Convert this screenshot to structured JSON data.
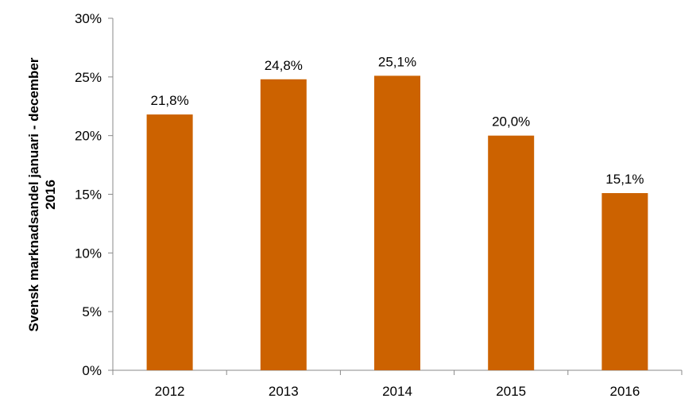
{
  "chart_data": {
    "type": "bar",
    "title": "",
    "categories": [
      "2012",
      "2013",
      "2014",
      "2015",
      "2016"
    ],
    "values": [
      21.8,
      24.8,
      25.1,
      20.0,
      15.1
    ],
    "data_labels": [
      "21,8%",
      "24,8%",
      "25,1%",
      "20,0%",
      "15,1%"
    ],
    "ylabel_lines": [
      "Svensk marknadsandel januari - december",
      "2016"
    ],
    "xlabel": "",
    "ylim": [
      0,
      30
    ],
    "yticks": [
      0,
      5,
      10,
      15,
      20,
      25,
      30
    ],
    "ytick_labels": [
      "0%",
      "5%",
      "10%",
      "15%",
      "20%",
      "25%",
      "30%"
    ],
    "grid": false,
    "legend": "none",
    "bar_color": "#CC6200",
    "axis_color": "#898989"
  }
}
